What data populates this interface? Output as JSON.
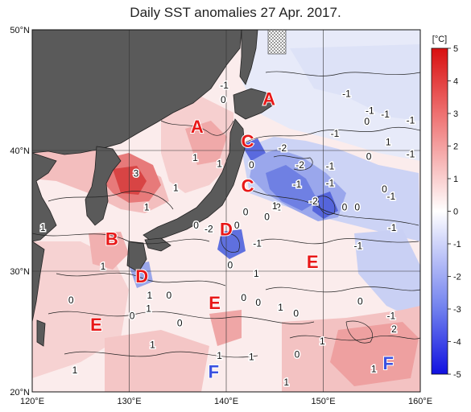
{
  "title": "Daily SST anomalies 27 Apr. 2017.",
  "lat_ticks": [
    {
      "label": "50°N",
      "lat": 50
    },
    {
      "label": "40°N",
      "lat": 40
    },
    {
      "label": "30°N",
      "lat": 30
    },
    {
      "label": "20°N",
      "lat": 20
    }
  ],
  "lon_ticks": [
    {
      "label": "120°E",
      "lon": 120
    },
    {
      "label": "130°E",
      "lon": 130
    },
    {
      "label": "140°E",
      "lon": 140
    },
    {
      "label": "150°E",
      "lon": 150
    },
    {
      "label": "160°E",
      "lon": 160
    }
  ],
  "colorbar": {
    "unit": "[°C]",
    "min": -5,
    "max": 5,
    "labels": [
      "5",
      "4",
      "3",
      "2",
      "1",
      "0",
      "-1",
      "-2",
      "-3",
      "-4",
      "-5"
    ],
    "warm_color": "#e02020",
    "cold_color": "#1010e0",
    "zero_color": "#ffffff"
  },
  "regions": [
    {
      "label": "A",
      "lon": 144.4,
      "lat": 44.3,
      "color": "#e81818"
    },
    {
      "label": "A",
      "lon": 137.0,
      "lat": 42.0,
      "color": "#e81818"
    },
    {
      "label": "C",
      "lon": 142.2,
      "lat": 40.8,
      "color": "#e81818"
    },
    {
      "label": "C",
      "lon": 142.2,
      "lat": 37.1,
      "color": "#e81818"
    },
    {
      "label": "D",
      "lon": 140.0,
      "lat": 33.5,
      "color": "#e81818"
    },
    {
      "label": "B",
      "lon": 128.2,
      "lat": 32.7,
      "color": "#e81818"
    },
    {
      "label": "D",
      "lon": 131.3,
      "lat": 29.6,
      "color": "#e81818"
    },
    {
      "label": "E",
      "lon": 148.9,
      "lat": 30.8,
      "color": "#e81818"
    },
    {
      "label": "E",
      "lon": 138.8,
      "lat": 27.4,
      "color": "#e81818"
    },
    {
      "label": "E",
      "lon": 126.6,
      "lat": 25.6,
      "color": "#e81818"
    },
    {
      "label": "F",
      "lon": 138.7,
      "lat": 21.7,
      "color": "#3a50e0"
    },
    {
      "label": "F",
      "lon": 156.7,
      "lat": 22.4,
      "color": "#3a50e0"
    }
  ],
  "contour_labels": [
    {
      "text": "-1",
      "lon": 139.8,
      "lat": 45.4
    },
    {
      "text": "0",
      "lon": 139.7,
      "lat": 44.2
    },
    {
      "text": "-1",
      "lon": 152.4,
      "lat": 44.7
    },
    {
      "text": "-1",
      "lon": 154.8,
      "lat": 43.3
    },
    {
      "text": "0",
      "lon": 154.5,
      "lat": 42.4
    },
    {
      "text": "-1",
      "lon": 156.4,
      "lat": 43.0
    },
    {
      "text": "-1",
      "lon": 159.0,
      "lat": 42.5
    },
    {
      "text": "-1",
      "lon": 151.2,
      "lat": 41.4
    },
    {
      "text": "1",
      "lon": 156.7,
      "lat": 40.7
    },
    {
      "text": "-2",
      "lon": 145.8,
      "lat": 40.2
    },
    {
      "text": "0",
      "lon": 154.7,
      "lat": 39.5
    },
    {
      "text": "-1",
      "lon": 159.0,
      "lat": 39.7
    },
    {
      "text": "-2",
      "lon": 147.6,
      "lat": 38.8
    },
    {
      "text": "-1",
      "lon": 150.7,
      "lat": 38.7
    },
    {
      "text": "0",
      "lon": 142.6,
      "lat": 38.8
    },
    {
      "text": "1",
      "lon": 136.8,
      "lat": 39.4
    },
    {
      "text": "1",
      "lon": 139.3,
      "lat": 38.9
    },
    {
      "text": "3",
      "lon": 130.7,
      "lat": 38.1
    },
    {
      "text": "-1",
      "lon": 147.3,
      "lat": 37.2
    },
    {
      "text": "-1",
      "lon": 150.7,
      "lat": 37.3
    },
    {
      "text": "0",
      "lon": 156.3,
      "lat": 36.8
    },
    {
      "text": "-1",
      "lon": 157.0,
      "lat": 36.2
    },
    {
      "text": "1",
      "lon": 134.8,
      "lat": 36.9
    },
    {
      "text": "-2",
      "lon": 145.2,
      "lat": 35.3
    },
    {
      "text": "-2",
      "lon": 149.0,
      "lat": 35.8
    },
    {
      "text": "1",
      "lon": 145.0,
      "lat": 35.4
    },
    {
      "text": "0",
      "lon": 142.0,
      "lat": 34.9
    },
    {
      "text": "0",
      "lon": 144.2,
      "lat": 34.5
    },
    {
      "text": "0",
      "lon": 152.2,
      "lat": 35.3
    },
    {
      "text": "0",
      "lon": 153.5,
      "lat": 35.3
    },
    {
      "text": "1",
      "lon": 131.8,
      "lat": 35.3
    },
    {
      "text": "1",
      "lon": 121.1,
      "lat": 33.6
    },
    {
      "text": "0",
      "lon": 136.9,
      "lat": 33.8
    },
    {
      "text": "-2",
      "lon": 138.2,
      "lat": 33.5
    },
    {
      "text": "0",
      "lon": 141.1,
      "lat": 33.8
    },
    {
      "text": "-1",
      "lon": 157.1,
      "lat": 33.6
    },
    {
      "text": "-1",
      "lon": 143.2,
      "lat": 32.3
    },
    {
      "text": "-1",
      "lon": 153.6,
      "lat": 32.1
    },
    {
      "text": "1",
      "lon": 127.3,
      "lat": 30.4
    },
    {
      "text": "0",
      "lon": 140.4,
      "lat": 30.5
    },
    {
      "text": "1",
      "lon": 143.1,
      "lat": 29.8
    },
    {
      "text": "0",
      "lon": 124.0,
      "lat": 27.6
    },
    {
      "text": "1",
      "lon": 132.1,
      "lat": 28.0
    },
    {
      "text": "0",
      "lon": 134.1,
      "lat": 28.0
    },
    {
      "text": "0",
      "lon": 141.8,
      "lat": 27.8
    },
    {
      "text": "0",
      "lon": 143.3,
      "lat": 27.4
    },
    {
      "text": "0",
      "lon": 147.2,
      "lat": 26.5
    },
    {
      "text": "0",
      "lon": 153.8,
      "lat": 27.5
    },
    {
      "text": "1",
      "lon": 132.0,
      "lat": 26.9
    },
    {
      "text": "0",
      "lon": 130.3,
      "lat": 26.3
    },
    {
      "text": "1",
      "lon": 145.6,
      "lat": 27.0
    },
    {
      "text": "-1",
      "lon": 157.0,
      "lat": 26.3
    },
    {
      "text": "0",
      "lon": 135.2,
      "lat": 25.7
    },
    {
      "text": "2",
      "lon": 157.3,
      "lat": 25.2
    },
    {
      "text": "1",
      "lon": 132.4,
      "lat": 23.9
    },
    {
      "text": "1",
      "lon": 139.3,
      "lat": 23.0
    },
    {
      "text": "1",
      "lon": 142.6,
      "lat": 22.9
    },
    {
      "text": "0",
      "lon": 147.3,
      "lat": 23.1
    },
    {
      "text": "1",
      "lon": 149.9,
      "lat": 24.2
    },
    {
      "text": "1",
      "lon": 124.4,
      "lat": 21.8
    },
    {
      "text": "1",
      "lon": 155.2,
      "lat": 21.9
    },
    {
      "text": "1",
      "lon": 146.2,
      "lat": 20.8
    }
  ]
}
